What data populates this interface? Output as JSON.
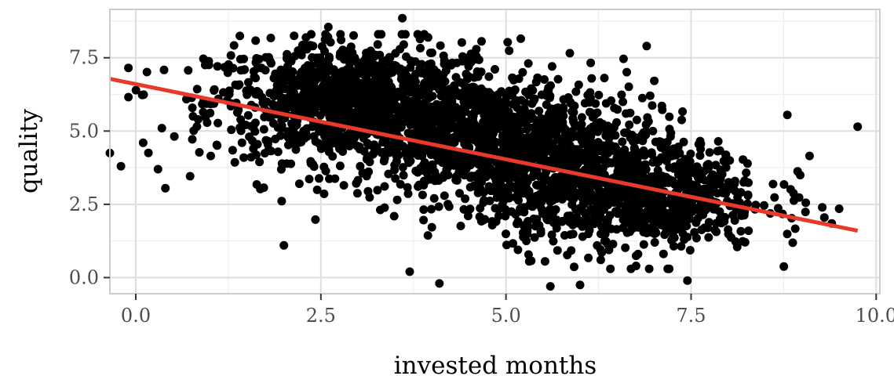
{
  "chart_data": {
    "type": "scatter",
    "title": "",
    "xlabel": "invested months",
    "ylabel": "quality",
    "xlim": [
      -0.35,
      10.05
    ],
    "ylim": [
      -0.55,
      9.15
    ],
    "x_ticks": [
      0.0,
      2.5,
      5.0,
      7.5,
      10.0
    ],
    "x_tick_labels": [
      "0.0",
      "2.5",
      "5.0",
      "7.5",
      "10.0"
    ],
    "y_ticks": [
      0.0,
      2.5,
      5.0,
      7.5
    ],
    "y_tick_labels": [
      "0.0",
      "2.5",
      "5.0",
      "7.5"
    ],
    "grid": true,
    "colors": {
      "points": "#000000",
      "fit_line": "#e8392a",
      "panel_border": "#cccccc",
      "grid_major": "#dedede",
      "grid_minor": "#efefef"
    },
    "fit_line": {
      "x": [
        -0.35,
        9.75
      ],
      "y": [
        6.78,
        1.6
      ]
    },
    "point_cloud": {
      "count": 3000,
      "clusters": [
        {
          "cx": 3.0,
          "cy": 6.0,
          "sx": 1.0,
          "sy": 1.0,
          "weight": 0.38
        },
        {
          "cx": 5.0,
          "cy": 4.6,
          "sx": 1.0,
          "sy": 1.05,
          "weight": 0.32
        },
        {
          "cx": 6.6,
          "cy": 2.8,
          "sx": 0.95,
          "sy": 0.95,
          "weight": 0.3
        }
      ],
      "outliers": [
        [
          -0.35,
          4.25
        ],
        [
          -0.2,
          3.8
        ],
        [
          0.1,
          4.6
        ],
        [
          0.4,
          3.05
        ],
        [
          0.3,
          3.7
        ],
        [
          2.0,
          1.1
        ],
        [
          3.7,
          0.2
        ],
        [
          4.1,
          -0.2
        ],
        [
          6.0,
          -0.25
        ],
        [
          5.6,
          -0.3
        ],
        [
          7.45,
          -0.1
        ],
        [
          6.9,
          7.9
        ],
        [
          5.2,
          8.15
        ],
        [
          3.6,
          8.85
        ],
        [
          2.6,
          8.55
        ],
        [
          8.8,
          5.55
        ],
        [
          9.75,
          5.15
        ],
        [
          9.5,
          2.35
        ],
        [
          9.3,
          2.05
        ],
        [
          9.1,
          4.15
        ]
      ]
    }
  }
}
